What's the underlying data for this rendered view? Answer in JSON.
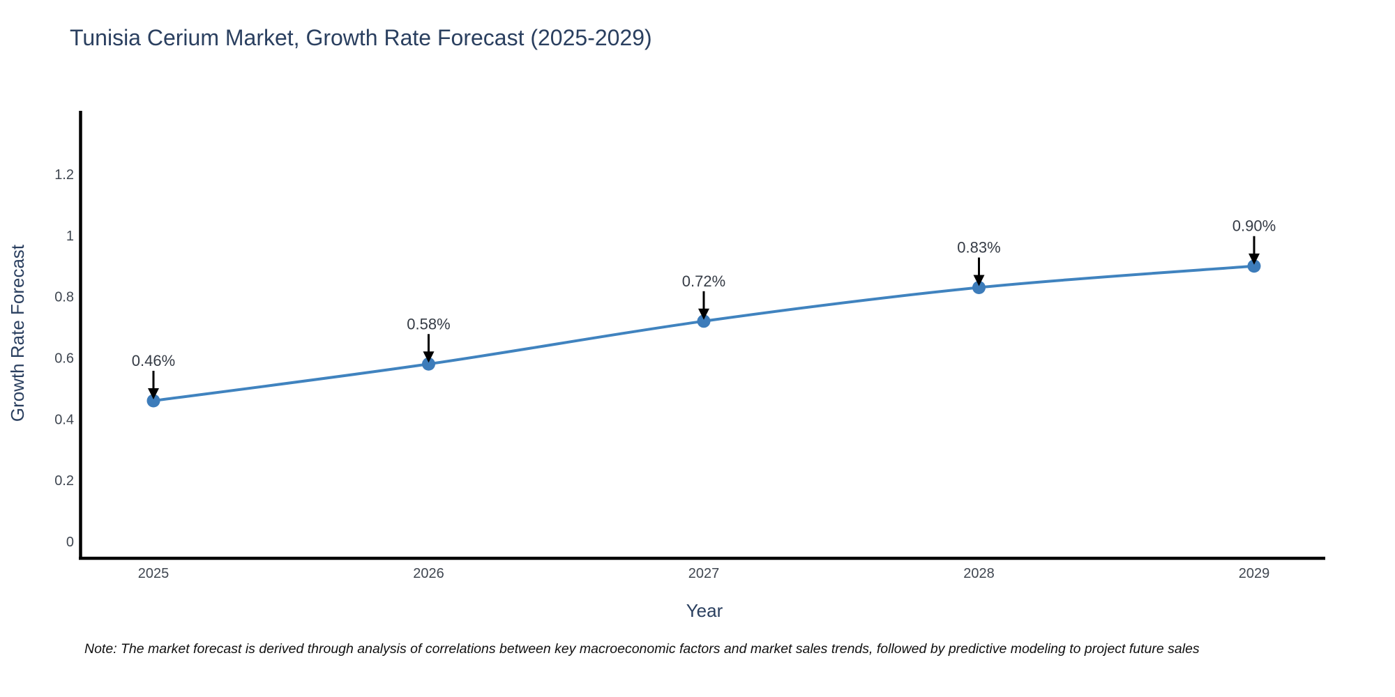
{
  "title": "Tunisia Cerium Market, Growth Rate Forecast (2025-2029)",
  "note": "Note: The market forecast is derived through analysis of correlations between key macroeconomic factors and market sales trends, followed by predictive modeling to project future sales",
  "chart_data": {
    "type": "line",
    "title": "Tunisia Cerium Market, Growth Rate Forecast (2025-2029)",
    "xlabel": "Year",
    "ylabel": "Growth Rate Forecast",
    "categories": [
      "2025",
      "2026",
      "2027",
      "2028",
      "2029"
    ],
    "series": [
      {
        "name": "Growth Rate Forecast",
        "values": [
          0.46,
          0.58,
          0.72,
          0.83,
          0.9
        ]
      }
    ],
    "point_labels": [
      "0.46%",
      "0.58%",
      "0.72%",
      "0.83%",
      "0.90%"
    ],
    "ytick_labels": [
      "0",
      "0.2",
      "0.4",
      "0.6",
      "0.8",
      "1",
      "1.2"
    ],
    "ytick_values": [
      0,
      0.2,
      0.4,
      0.6,
      0.8,
      1.0,
      1.2
    ],
    "ylim": [
      -0.066,
      1.405
    ],
    "grid": false,
    "legend_position": "none",
    "line_shape": "spline",
    "colors": {
      "line": "#4083bf",
      "marker": "#3d7cba",
      "arrow": "#000000",
      "axis_line": "#000000",
      "title_text": "#2a3f5f",
      "axis_title_text": "#2a3f5f",
      "tick_text": "#3f4650",
      "annotation_text": "#353b45",
      "note_text": "#111111",
      "background": "#ffffff"
    }
  }
}
